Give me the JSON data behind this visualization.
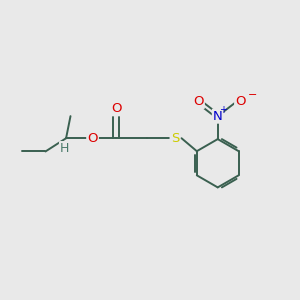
{
  "bg_color": "#e9e9e9",
  "bond_color": "#3a6050",
  "bond_lw": 1.4,
  "atom_colors": {
    "O": "#dd0000",
    "N": "#0000cc",
    "S": "#cccc00",
    "H": "#4a7a6a",
    "C": "#3a6050"
  },
  "font_size": 9.5,
  "fig_size": [
    3.0,
    3.0
  ],
  "dpi": 100,
  "xlim": [
    0,
    10
  ],
  "ylim": [
    0,
    10
  ]
}
